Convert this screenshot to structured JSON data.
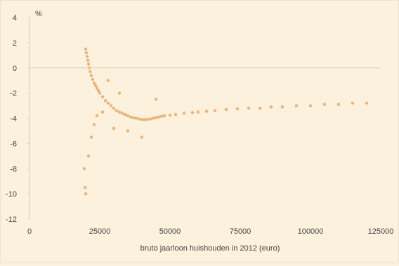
{
  "chart_data": {
    "type": "scatter",
    "title": "",
    "xlabel": "bruto jaarloon huishouden in 2012 (euro)",
    "ylabel": "%",
    "xlim": [
      0,
      125000
    ],
    "ylim": [
      -12,
      4
    ],
    "x_ticks": [
      0,
      25000,
      50000,
      75000,
      100000,
      125000
    ],
    "x_tick_labels": [
      "0",
      "25000",
      "50000",
      "75000",
      "100000",
      "125000"
    ],
    "y_ticks": [
      4,
      2,
      0,
      -2,
      -4,
      -6,
      -8,
      -10,
      -12
    ],
    "y_tick_labels": [
      "4",
      "2",
      "0",
      "-2",
      "-4",
      "-6",
      "-8",
      "-10",
      "-12"
    ],
    "grid": false,
    "reference_line_y": 0,
    "colors": {
      "points": "#d9822b",
      "background": "#fbf1dc",
      "axis": "#d6ccb8",
      "text": "#444444"
    },
    "series": [
      {
        "values": [
          [
            20000,
            1.5
          ],
          [
            20200,
            1.2
          ],
          [
            20500,
            0.9
          ],
          [
            20800,
            0.6
          ],
          [
            21000,
            0.3
          ],
          [
            21300,
            0.0
          ],
          [
            21600,
            -0.3
          ],
          [
            22000,
            -0.6
          ],
          [
            22500,
            -0.9
          ],
          [
            23000,
            -1.2
          ],
          [
            23500,
            -1.4
          ],
          [
            24000,
            -1.6
          ],
          [
            24500,
            -1.8
          ],
          [
            25000,
            -2.0
          ],
          [
            26000,
            -2.3
          ],
          [
            27000,
            -2.6
          ],
          [
            28000,
            -2.8
          ],
          [
            29000,
            -3.0
          ],
          [
            30000,
            -3.2
          ],
          [
            31000,
            -3.4
          ],
          [
            32000,
            -3.5
          ],
          [
            33000,
            -3.6
          ],
          [
            34000,
            -3.7
          ],
          [
            35000,
            -3.8
          ],
          [
            36000,
            -3.9
          ],
          [
            37000,
            -3.95
          ],
          [
            38000,
            -4.0
          ],
          [
            39000,
            -4.05
          ],
          [
            40000,
            -4.1
          ],
          [
            41000,
            -4.1
          ],
          [
            42000,
            -4.1
          ],
          [
            43000,
            -4.05
          ],
          [
            44000,
            -4.0
          ],
          [
            45000,
            -3.95
          ],
          [
            46000,
            -3.9
          ],
          [
            47000,
            -3.85
          ],
          [
            48000,
            -3.8
          ],
          [
            50000,
            -3.75
          ],
          [
            52000,
            -3.7
          ],
          [
            55000,
            -3.6
          ],
          [
            58000,
            -3.55
          ],
          [
            60000,
            -3.5
          ],
          [
            63000,
            -3.45
          ],
          [
            66000,
            -3.4
          ],
          [
            70000,
            -3.3
          ],
          [
            74000,
            -3.25
          ],
          [
            78000,
            -3.2
          ],
          [
            82000,
            -3.2
          ],
          [
            86000,
            -3.1
          ],
          [
            90000,
            -3.1
          ],
          [
            95000,
            -3.0
          ],
          [
            100000,
            -3.0
          ],
          [
            105000,
            -2.9
          ],
          [
            110000,
            -2.9
          ],
          [
            115000,
            -2.8
          ],
          [
            120000,
            -2.8
          ],
          [
            19500,
            -8.0
          ],
          [
            19800,
            -9.5
          ],
          [
            20000,
            -10.0
          ],
          [
            21000,
            -7.0
          ],
          [
            22000,
            -5.5
          ],
          [
            23000,
            -4.5
          ],
          [
            24000,
            -3.8
          ],
          [
            26000,
            -3.5
          ],
          [
            30000,
            -4.8
          ],
          [
            35000,
            -5.0
          ],
          [
            40000,
            -5.5
          ],
          [
            28000,
            -1.0
          ],
          [
            32000,
            -2.0
          ],
          [
            45000,
            -2.5
          ]
        ]
      }
    ]
  }
}
